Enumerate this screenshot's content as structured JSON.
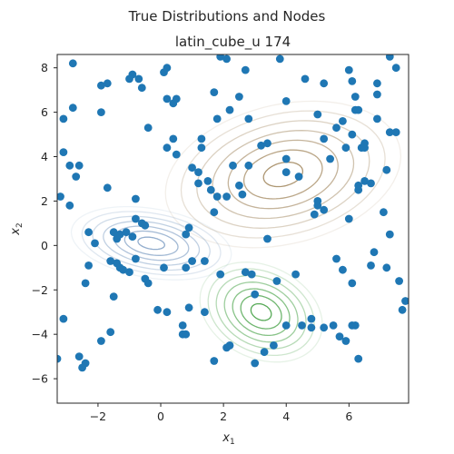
{
  "figure": {
    "suptitle": "True Distributions  and Nodes",
    "title": "latin_cube_u 174",
    "xlabel": "x",
    "xlabel_sub": "1",
    "ylabel": "x",
    "ylabel_sub": "2"
  },
  "chart_data": {
    "type": "scatter",
    "xlim": [
      -3.3,
      7.9
    ],
    "ylim": [
      -7.1,
      8.6
    ],
    "x_ticks": [
      -2,
      0,
      2,
      4,
      6
    ],
    "y_ticks": [
      -6,
      -4,
      -2,
      0,
      2,
      4,
      6,
      8
    ],
    "x_tick_labels": [
      "−2",
      "0",
      "2",
      "4",
      "6"
    ],
    "y_tick_labels": [
      "−6",
      "−4",
      "−2",
      "0",
      "2",
      "4",
      "6",
      "8"
    ],
    "grid": false,
    "node_color": "#1f77b4",
    "distributions": [
      {
        "mean": [
          3.9,
          3.2
        ],
        "sd": [
          1.25,
          1.1
        ],
        "rho": 0.25,
        "colormap": "brown",
        "color": "#a0855b"
      },
      {
        "mean": [
          -0.3,
          0.1
        ],
        "sd": [
          0.85,
          0.55
        ],
        "rho": -0.3,
        "colormap": "blue",
        "color": "#7f9fc4"
      },
      {
        "mean": [
          3.2,
          -3.0
        ],
        "sd": [
          0.65,
          0.75
        ],
        "rho": -0.25,
        "colormap": "green",
        "color": "#3a9b3a"
      }
    ],
    "points": [
      [
        -2.8,
        8.2
      ],
      [
        -1.9,
        7.2
      ],
      [
        -1.7,
        7.3
      ],
      [
        -0.9,
        7.7
      ],
      [
        -0.7,
        7.5
      ],
      [
        -0.6,
        7.1
      ],
      [
        0.1,
        7.8
      ],
      [
        0.2,
        8.0
      ],
      [
        0.2,
        6.6
      ],
      [
        0.4,
        6.4
      ],
      [
        0.5,
        6.6
      ],
      [
        1.7,
        6.9
      ],
      [
        1.9,
        8.5
      ],
      [
        2.1,
        8.4
      ],
      [
        2.7,
        7.9
      ],
      [
        3.8,
        8.4
      ],
      [
        4.6,
        7.5
      ],
      [
        5.2,
        7.3
      ],
      [
        6.0,
        7.9
      ],
      [
        6.1,
        7.4
      ],
      [
        6.2,
        6.7
      ],
      [
        6.2,
        6.1
      ],
      [
        6.3,
        6.1
      ],
      [
        6.9,
        7.3
      ],
      [
        7.3,
        8.5
      ],
      [
        7.5,
        8.0
      ],
      [
        6.9,
        6.8
      ],
      [
        -3.1,
        5.7
      ],
      [
        -2.8,
        6.2
      ],
      [
        -1.9,
        6.0
      ],
      [
        -1.0,
        7.5
      ],
      [
        -0.4,
        5.3
      ],
      [
        0.2,
        4.4
      ],
      [
        0.4,
        4.8
      ],
      [
        0.5,
        4.1
      ],
      [
        1.3,
        4.8
      ],
      [
        1.3,
        4.4
      ],
      [
        1.8,
        5.7
      ],
      [
        2.2,
        6.1
      ],
      [
        2.5,
        6.7
      ],
      [
        2.8,
        5.7
      ],
      [
        4.0,
        6.5
      ],
      [
        5.0,
        5.9
      ],
      [
        5.6,
        5.3
      ],
      [
        5.8,
        5.6
      ],
      [
        6.1,
        5.0
      ],
      [
        6.4,
        4.4
      ],
      [
        6.5,
        4.4
      ],
      [
        6.9,
        5.7
      ],
      [
        7.3,
        5.1
      ],
      [
        7.5,
        5.1
      ],
      [
        7.2,
        3.4
      ],
      [
        -3.1,
        4.2
      ],
      [
        -2.9,
        3.6
      ],
      [
        -2.6,
        3.6
      ],
      [
        -2.7,
        3.1
      ],
      [
        -1.7,
        2.6
      ],
      [
        1.0,
        3.5
      ],
      [
        1.2,
        3.3
      ],
      [
        1.2,
        2.8
      ],
      [
        1.5,
        2.9
      ],
      [
        1.6,
        2.5
      ],
      [
        1.8,
        2.2
      ],
      [
        2.1,
        2.2
      ],
      [
        2.3,
        3.6
      ],
      [
        2.5,
        2.7
      ],
      [
        2.6,
        2.3
      ],
      [
        2.8,
        3.6
      ],
      [
        3.2,
        4.5
      ],
      [
        3.4,
        4.6
      ],
      [
        4.0,
        3.9
      ],
      [
        4.0,
        3.3
      ],
      [
        4.4,
        3.1
      ],
      [
        5.2,
        4.8
      ],
      [
        5.4,
        3.9
      ],
      [
        5.9,
        4.4
      ],
      [
        6.3,
        2.5
      ],
      [
        6.5,
        4.6
      ],
      [
        6.5,
        2.9
      ],
      [
        6.7,
        2.8
      ],
      [
        6.3,
        2.7
      ],
      [
        -3.2,
        2.2
      ],
      [
        -2.9,
        1.8
      ],
      [
        -0.8,
        2.1
      ],
      [
        -0.8,
        1.2
      ],
      [
        -0.6,
        1.0
      ],
      [
        -0.5,
        0.9
      ],
      [
        -2.3,
        0.6
      ],
      [
        -2.1,
        0.1
      ],
      [
        -1.5,
        0.6
      ],
      [
        -1.4,
        0.3
      ],
      [
        -1.3,
        0.5
      ],
      [
        -1.1,
        0.6
      ],
      [
        -0.9,
        0.4
      ],
      [
        0.8,
        0.5
      ],
      [
        0.9,
        0.8
      ],
      [
        1.7,
        1.5
      ],
      [
        3.4,
        0.3
      ],
      [
        4.9,
        1.4
      ],
      [
        5.0,
        2.0
      ],
      [
        5.2,
        1.6
      ],
      [
        5.0,
        1.8
      ],
      [
        6.0,
        1.2
      ],
      [
        7.1,
        1.5
      ],
      [
        7.3,
        0.5
      ],
      [
        6.8,
        -0.3
      ],
      [
        -2.3,
        -0.9
      ],
      [
        -2.4,
        -1.7
      ],
      [
        -1.6,
        -0.7
      ],
      [
        -1.4,
        -0.8
      ],
      [
        -1.5,
        -2.3
      ],
      [
        -1.3,
        -1.0
      ],
      [
        -1.2,
        -1.1
      ],
      [
        -1.0,
        -1.2
      ],
      [
        -0.8,
        -0.6
      ],
      [
        -0.5,
        -1.5
      ],
      [
        -0.4,
        -1.7
      ],
      [
        0.1,
        -1.0
      ],
      [
        0.8,
        -1.0
      ],
      [
        1.0,
        -0.7
      ],
      [
        1.4,
        -0.7
      ],
      [
        1.9,
        -1.3
      ],
      [
        2.7,
        -1.2
      ],
      [
        2.9,
        -1.3
      ],
      [
        3.0,
        -2.2
      ],
      [
        3.7,
        -1.6
      ],
      [
        4.3,
        -1.3
      ],
      [
        5.6,
        -0.6
      ],
      [
        5.8,
        -1.1
      ],
      [
        6.7,
        -0.9
      ],
      [
        7.2,
        -1.0
      ],
      [
        6.1,
        -1.7
      ],
      [
        7.6,
        -1.6
      ],
      [
        7.8,
        -2.5
      ],
      [
        7.7,
        -2.9
      ],
      [
        -3.1,
        -3.3
      ],
      [
        -1.6,
        -3.9
      ],
      [
        -1.9,
        -4.3
      ],
      [
        -2.6,
        -5.0
      ],
      [
        -2.4,
        -5.3
      ],
      [
        -2.5,
        -5.5
      ],
      [
        -3.3,
        -5.1
      ],
      [
        -0.1,
        -2.9
      ],
      [
        0.2,
        -3.0
      ],
      [
        0.7,
        -3.6
      ],
      [
        0.9,
        -2.8
      ],
      [
        1.4,
        -3.0
      ],
      [
        0.7,
        -4.0
      ],
      [
        0.8,
        -4.0
      ],
      [
        1.7,
        -5.2
      ],
      [
        2.1,
        -4.6
      ],
      [
        2.2,
        -4.5
      ],
      [
        3.0,
        -5.3
      ],
      [
        3.3,
        -4.8
      ],
      [
        3.6,
        -4.5
      ],
      [
        4.0,
        -3.6
      ],
      [
        4.5,
        -3.6
      ],
      [
        4.8,
        -3.7
      ],
      [
        4.8,
        -3.3
      ],
      [
        5.2,
        -3.7
      ],
      [
        5.5,
        -3.6
      ],
      [
        5.7,
        -4.1
      ],
      [
        5.9,
        -4.3
      ],
      [
        6.1,
        -3.6
      ],
      [
        6.2,
        -3.6
      ],
      [
        6.3,
        -5.1
      ]
    ]
  }
}
